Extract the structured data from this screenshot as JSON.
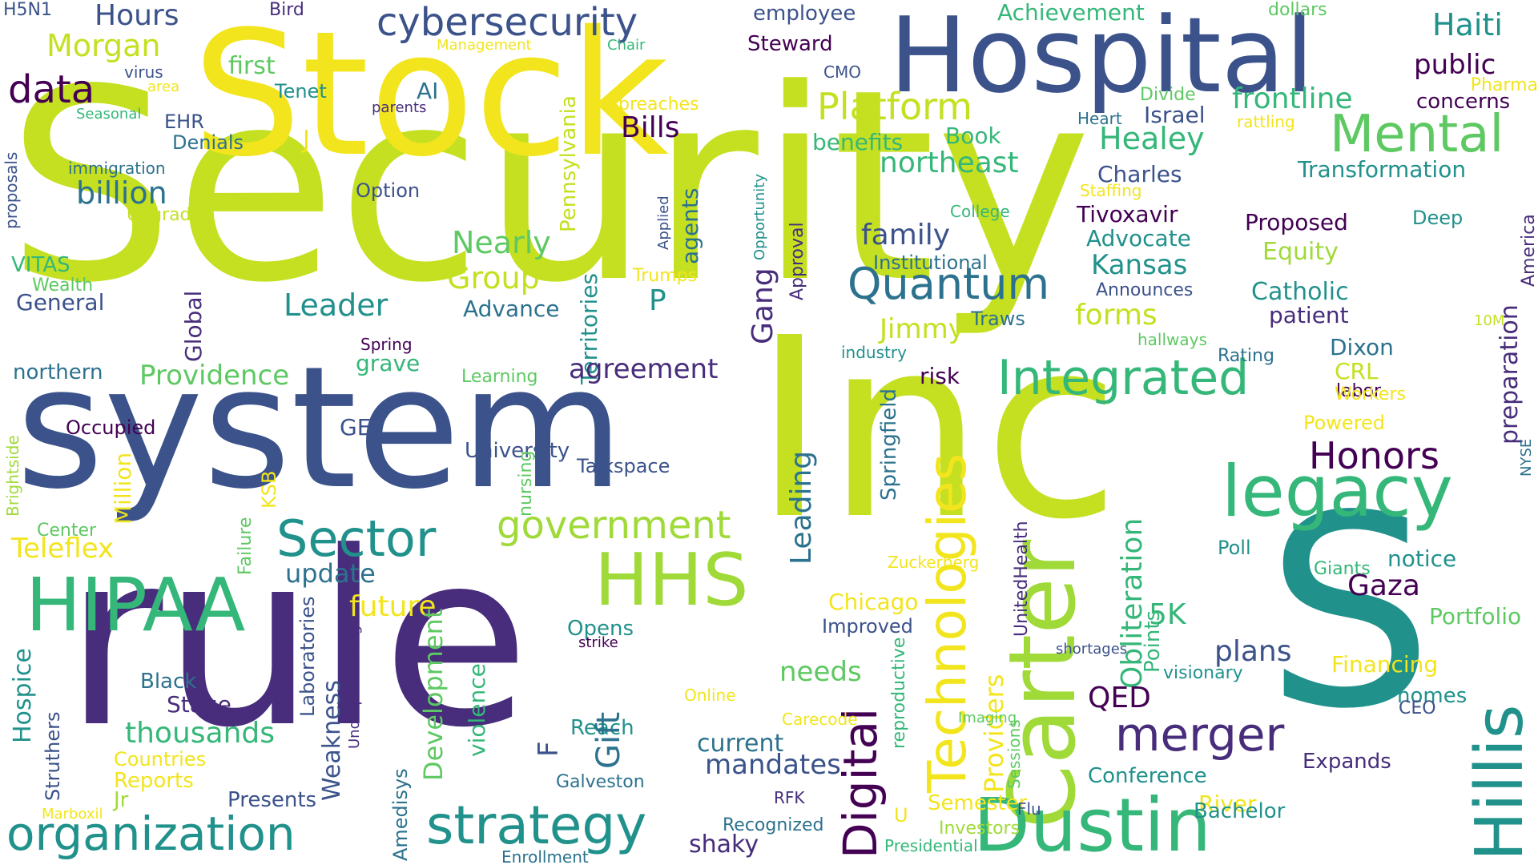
{
  "palette": {
    "yellow": "#f2e51d",
    "lime": "#c5e021",
    "light_green": "#a0da39",
    "green": "#5ec962",
    "mint": "#35b779",
    "teal": "#21918c",
    "steel": "#2c728e",
    "slate": "#3b528b",
    "indigo": "#472d7b",
    "dark": "#440154"
  },
  "words": [
    {
      "text": "Security",
      "color": "#c5e021"
    },
    {
      "text": "Inc",
      "color": "#c5e021"
    },
    {
      "text": "S",
      "color": "#21918c"
    },
    {
      "text": "rule",
      "color": "#472d7b"
    },
    {
      "text": "system",
      "color": "#3b528b"
    },
    {
      "text": "Stock",
      "color": "#f2e51d"
    },
    {
      "text": "Hospital",
      "color": "#3b528b"
    },
    {
      "text": "Carter",
      "color": "#a0da39"
    },
    {
      "text": "Dustin",
      "color": "#35b779"
    },
    {
      "text": "HIPAA",
      "color": "#35b779"
    },
    {
      "text": "HHS",
      "color": "#a0da39"
    },
    {
      "text": "legacy",
      "color": "#35b779"
    },
    {
      "text": "Hillis",
      "color": "#21918c"
    },
    {
      "text": "Technologies",
      "color": "#f2e51d"
    },
    {
      "text": "strategy",
      "color": "#21918c"
    },
    {
      "text": "organization",
      "color": "#21918c"
    },
    {
      "text": "Sector",
      "color": "#21918c"
    },
    {
      "text": "Integrated",
      "color": "#35b779"
    },
    {
      "text": "Mental",
      "color": "#5ec962"
    },
    {
      "text": "merger",
      "color": "#472d7b"
    },
    {
      "text": "Digital",
      "color": "#440154"
    },
    {
      "text": "Quantum",
      "color": "#2c728e"
    },
    {
      "text": "government",
      "color": "#a0da39"
    },
    {
      "text": "Platform",
      "color": "#c5e021"
    },
    {
      "text": "cybersecurity",
      "color": "#3b528b"
    },
    {
      "text": "data",
      "color": "#440154"
    },
    {
      "text": "billion",
      "color": "#2c728e"
    },
    {
      "text": "Morgan",
      "color": "#c5e021"
    },
    {
      "text": "Hours",
      "color": "#3b528b"
    },
    {
      "text": "first",
      "color": "#5ec962"
    },
    {
      "text": "Tenet",
      "color": "#21918c"
    },
    {
      "text": "AI",
      "color": "#2c728e"
    },
    {
      "text": "H5N1",
      "color": "#3b528b"
    },
    {
      "text": "Bird",
      "color": "#472d7b"
    },
    {
      "text": "Management",
      "color": "#f2e51d"
    },
    {
      "text": "virus",
      "color": "#3b528b"
    },
    {
      "text": "area",
      "color": "#f2e51d"
    },
    {
      "text": "Seasonal",
      "color": "#35b779"
    },
    {
      "text": "EHR",
      "color": "#3b528b"
    },
    {
      "text": "J",
      "color": "#f2e51d"
    },
    {
      "text": "parents",
      "color": "#472d7b"
    },
    {
      "text": "Denials",
      "color": "#2c728e"
    },
    {
      "text": "immigration",
      "color": "#2c728e"
    },
    {
      "text": "proposals",
      "color": "#3b528b"
    },
    {
      "text": "Upgrade",
      "color": "#c5e021"
    },
    {
      "text": "Option",
      "color": "#3b528b"
    },
    {
      "text": "VITAS",
      "color": "#35b779"
    },
    {
      "text": "Wealth",
      "color": "#5ec962"
    },
    {
      "text": "General",
      "color": "#3b528b"
    },
    {
      "text": "Leader",
      "color": "#21918c"
    },
    {
      "text": "Advance",
      "color": "#2c728e"
    },
    {
      "text": "Group",
      "color": "#c5e021"
    },
    {
      "text": "Nearly",
      "color": "#5ec962"
    },
    {
      "text": "Territories",
      "color": "#21918c"
    },
    {
      "text": "Pennsylvania",
      "color": "#c5e021"
    },
    {
      "text": "agents",
      "color": "#2c728e"
    },
    {
      "text": "Applied",
      "color": "#3b528b"
    },
    {
      "text": "Opportunity",
      "color": "#21918c"
    },
    {
      "text": "Trumps",
      "color": "#f2e51d"
    },
    {
      "text": "P",
      "color": "#21918c"
    },
    {
      "text": "Gang",
      "color": "#472d7b"
    },
    {
      "text": "Approval",
      "color": "#472d7b"
    },
    {
      "text": "Global",
      "color": "#472d7b"
    },
    {
      "text": "Spring",
      "color": "#440154"
    },
    {
      "text": "grave",
      "color": "#35b779"
    },
    {
      "text": "Providence",
      "color": "#5ec962"
    },
    {
      "text": "northern",
      "color": "#2c728e"
    },
    {
      "text": "Learning",
      "color": "#5ec962"
    },
    {
      "text": "agreement",
      "color": "#472d7b"
    },
    {
      "text": "Bills",
      "color": "#440154"
    },
    {
      "text": "breaches",
      "color": "#f2e51d"
    },
    {
      "text": "employee",
      "color": "#3b528b"
    },
    {
      "text": "Steward",
      "color": "#440154"
    },
    {
      "text": "CMO",
      "color": "#3b528b"
    },
    {
      "text": "Chair",
      "color": "#35b779"
    },
    {
      "text": "benefits",
      "color": "#35b779"
    },
    {
      "text": "Book",
      "color": "#35b779"
    },
    {
      "text": "northeast",
      "color": "#35b779"
    },
    {
      "text": "College",
      "color": "#35b779"
    },
    {
      "text": "family",
      "color": "#3b528b"
    },
    {
      "text": "Institutional",
      "color": "#2c728e"
    },
    {
      "text": "Jimmy",
      "color": "#c5e021"
    },
    {
      "text": "Traws",
      "color": "#2c728e"
    },
    {
      "text": "industry",
      "color": "#21918c"
    },
    {
      "text": "risk",
      "color": "#440154"
    },
    {
      "text": "Achievement",
      "color": "#35b779"
    },
    {
      "text": "dollars",
      "color": "#5ec962"
    },
    {
      "text": "Haiti",
      "color": "#21918c"
    },
    {
      "text": "public",
      "color": "#440154"
    },
    {
      "text": "Pharma",
      "color": "#f2e51d"
    },
    {
      "text": "concerns",
      "color": "#440154"
    },
    {
      "text": "frontline",
      "color": "#35b779"
    },
    {
      "text": "Divide",
      "color": "#5ec962"
    },
    {
      "text": "Israel",
      "color": "#3b528b"
    },
    {
      "text": "Heart",
      "color": "#2c728e"
    },
    {
      "text": "rattling",
      "color": "#f2e51d"
    },
    {
      "text": "Healey",
      "color": "#35b779"
    },
    {
      "text": "Transformation",
      "color": "#21918c"
    },
    {
      "text": "Charles",
      "color": "#3b528b"
    },
    {
      "text": "Staffing",
      "color": "#f2e51d"
    },
    {
      "text": "Tivoxavir",
      "color": "#440154"
    },
    {
      "text": "Advocate",
      "color": "#21918c"
    },
    {
      "text": "Proposed",
      "color": "#440154"
    },
    {
      "text": "Deep",
      "color": "#21918c"
    },
    {
      "text": "America",
      "color": "#472d7b"
    },
    {
      "text": "Equity",
      "color": "#a0da39"
    },
    {
      "text": "Kansas",
      "color": "#21918c"
    },
    {
      "text": "Announces",
      "color": "#3b528b"
    },
    {
      "text": "forms",
      "color": "#c5e021"
    },
    {
      "text": "Catholic",
      "color": "#21918c"
    },
    {
      "text": "patient",
      "color": "#472d7b"
    },
    {
      "text": "hallways",
      "color": "#5ec962"
    },
    {
      "text": "10M",
      "color": "#c5e021"
    },
    {
      "text": "Rating",
      "color": "#2c728e"
    },
    {
      "text": "Dixon",
      "color": "#2c728e"
    },
    {
      "text": "CRL",
      "color": "#c5e021"
    },
    {
      "text": "labor",
      "color": "#440154"
    },
    {
      "text": "Workers",
      "color": "#f2e51d"
    },
    {
      "text": "preparation",
      "color": "#472d7b"
    },
    {
      "text": "NYSE",
      "color": "#2c728e"
    },
    {
      "text": "Powered",
      "color": "#f2e51d"
    },
    {
      "text": "Honors",
      "color": "#440154"
    },
    {
      "text": "GE",
      "color": "#3b528b"
    },
    {
      "text": "Occupied",
      "color": "#440154"
    },
    {
      "text": "Million",
      "color": "#f2e51d"
    },
    {
      "text": "Brightside",
      "color": "#a0da39"
    },
    {
      "text": "Failure",
      "color": "#5ec962"
    },
    {
      "text": "KSB",
      "color": "#f2e51d"
    },
    {
      "text": "University",
      "color": "#3b528b"
    },
    {
      "text": "nursing",
      "color": "#5ec962"
    },
    {
      "text": "Talkspace",
      "color": "#3b528b"
    },
    {
      "text": "Leading",
      "color": "#2c728e"
    },
    {
      "text": "Springfield",
      "color": "#2c728e"
    },
    {
      "text": "UnitedHealth",
      "color": "#472d7b"
    },
    {
      "text": "Obliteration",
      "color": "#35b779"
    },
    {
      "text": "Points",
      "color": "#35b779"
    },
    {
      "text": "Poll",
      "color": "#21918c"
    },
    {
      "text": "Giants",
      "color": "#35b779"
    },
    {
      "text": "notice",
      "color": "#21918c"
    },
    {
      "text": "Gaza",
      "color": "#440154"
    },
    {
      "text": "Portfolio",
      "color": "#5ec962"
    },
    {
      "text": "Center",
      "color": "#5ec962"
    },
    {
      "text": "Teleflex",
      "color": "#f2e51d"
    },
    {
      "text": "update",
      "color": "#2c728e"
    },
    {
      "text": "future",
      "color": "#f2e51d"
    },
    {
      "text": "Zuckerberg",
      "color": "#f2e51d"
    },
    {
      "text": "Chicago",
      "color": "#f2e51d"
    },
    {
      "text": "Improved",
      "color": "#3b528b"
    },
    {
      "text": "Opens",
      "color": "#21918c"
    },
    {
      "text": "strike",
      "color": "#440154"
    },
    {
      "text": "5K",
      "color": "#35b779"
    },
    {
      "text": "plans",
      "color": "#3b528b"
    },
    {
      "text": "shortages",
      "color": "#3b528b"
    },
    {
      "text": "Sessions",
      "color": "#5ec962"
    },
    {
      "text": "Providers",
      "color": "#f2e51d"
    },
    {
      "text": "reproductive",
      "color": "#35b779"
    },
    {
      "text": "Financing",
      "color": "#f2e51d"
    },
    {
      "text": "visionary",
      "color": "#21918c"
    },
    {
      "text": "QED",
      "color": "#440154"
    },
    {
      "text": "homes",
      "color": "#21918c"
    },
    {
      "text": "CEO",
      "color": "#3b528b"
    },
    {
      "text": "needs",
      "color": "#5ec962"
    },
    {
      "text": "Hospice",
      "color": "#21918c"
    },
    {
      "text": "Black",
      "color": "#2c728e"
    },
    {
      "text": "Stage",
      "color": "#472d7b"
    },
    {
      "text": "thousands",
      "color": "#35b779"
    },
    {
      "text": "Countries",
      "color": "#f2e51d"
    },
    {
      "text": "Reports",
      "color": "#f2e51d"
    },
    {
      "text": "Struthers",
      "color": "#3b528b"
    },
    {
      "text": "Jr",
      "color": "#a0da39"
    },
    {
      "text": "Presents",
      "color": "#3b528b"
    },
    {
      "text": "Marboxil",
      "color": "#f2e51d"
    },
    {
      "text": "Laboratories",
      "color": "#3b528b"
    },
    {
      "text": "Weakness",
      "color": "#3b528b"
    },
    {
      "text": "Underperforming",
      "color": "#472d7b"
    },
    {
      "text": "Amedisys",
      "color": "#2c728e"
    },
    {
      "text": "Development",
      "color": "#5ec962"
    },
    {
      "text": "violence",
      "color": "#35b779"
    },
    {
      "text": "F",
      "color": "#3b528b"
    },
    {
      "text": "Reach",
      "color": "#21918c"
    },
    {
      "text": "Gift",
      "color": "#2c728e"
    },
    {
      "text": "Online",
      "color": "#f2e51d"
    },
    {
      "text": "Carecode",
      "color": "#f2e51d"
    },
    {
      "text": "current",
      "color": "#2c728e"
    },
    {
      "text": "mandates",
      "color": "#3b528b"
    },
    {
      "text": "Imaging",
      "color": "#5ec962"
    },
    {
      "text": "Expands",
      "color": "#472d7b"
    },
    {
      "text": "Conference",
      "color": "#21918c"
    },
    {
      "text": "River",
      "color": "#f2e51d"
    },
    {
      "text": "Bachelor",
      "color": "#21918c"
    },
    {
      "text": "Galveston",
      "color": "#2c728e"
    },
    {
      "text": "RFK",
      "color": "#472d7b"
    },
    {
      "text": "Semester",
      "color": "#f2e51d"
    },
    {
      "text": "Flu",
      "color": "#3b528b"
    },
    {
      "text": "U",
      "color": "#f2e51d"
    },
    {
      "text": "Investors",
      "color": "#a0da39"
    },
    {
      "text": "Recognized",
      "color": "#2c728e"
    },
    {
      "text": "shaky",
      "color": "#472d7b"
    },
    {
      "text": "Presidential",
      "color": "#35b779"
    },
    {
      "text": "Enrollment",
      "color": "#2c728e"
    }
  ]
}
